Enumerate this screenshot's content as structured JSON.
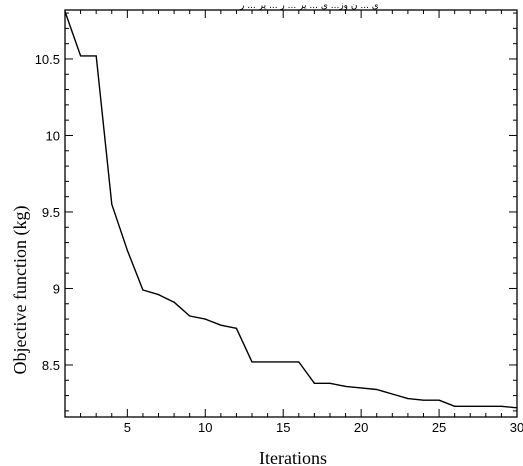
{
  "header_text": "ی ... ن وز... ی ... یر ... ر ... یر ... ر",
  "chart_data": {
    "type": "line",
    "title": "",
    "xlabel": "Iterations",
    "ylabel": "Objective function (kg)",
    "xlim": [
      1,
      30
    ],
    "ylim": [
      8.16,
      10.82
    ],
    "xticks": [
      5,
      10,
      15,
      20,
      25,
      30
    ],
    "yticks": [
      8.5,
      9,
      9.5,
      10,
      10.5
    ],
    "grid": false,
    "series": [
      {
        "values_x": [
          1,
          2,
          3,
          4,
          5,
          6,
          7,
          8,
          9,
          10,
          11,
          12,
          13,
          14,
          15,
          16,
          17,
          18,
          19,
          20,
          21,
          22,
          23,
          24,
          25,
          26,
          27,
          28,
          29,
          30
        ],
        "values_y": [
          10.81,
          10.52,
          10.52,
          9.55,
          9.25,
          8.99,
          8.96,
          8.91,
          8.82,
          8.8,
          8.76,
          8.74,
          8.52,
          8.52,
          8.52,
          8.52,
          8.38,
          8.38,
          8.36,
          8.35,
          8.34,
          8.31,
          8.28,
          8.27,
          8.27,
          8.23,
          8.23,
          8.23,
          8.23,
          8.22
        ]
      }
    ]
  }
}
